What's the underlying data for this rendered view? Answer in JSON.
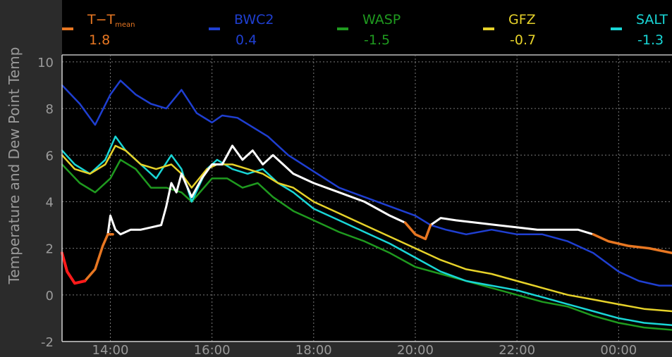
{
  "chart_data": {
    "type": "line",
    "title": "",
    "xlabel": "",
    "ylabel": "Temperature and Dew Point Temp",
    "ylim": [
      -2,
      10.3
    ],
    "xlim": [
      13.05,
      25.05
    ],
    "grid": true,
    "legend_position": "top",
    "x_ticks": [
      14,
      16,
      18,
      20,
      22,
      24
    ],
    "x_tick_labels": [
      "14:00",
      "16:00",
      "18:00",
      "20:00",
      "22:00",
      "00:00"
    ],
    "y_ticks": [
      -2,
      0,
      2,
      4,
      6,
      8,
      10
    ],
    "y_tick_labels": [
      "-2",
      "0",
      "2",
      "4",
      "6",
      "8",
      "10"
    ],
    "legend": [
      {
        "name": "T−T",
        "sub": "mean",
        "value": "1.8",
        "color": "#e87722"
      },
      {
        "name": "BWC2",
        "sub": "",
        "value": "0.4",
        "color": "#1f3fd1"
      },
      {
        "name": "WASP",
        "sub": "",
        "value": "-1.5",
        "color": "#1f9a1f"
      },
      {
        "name": "GFZ",
        "sub": "",
        "value": "-0.7",
        "color": "#e6d22a"
      },
      {
        "name": "SALT",
        "sub": "",
        "value": "-1.3",
        "color": "#19d6d6"
      }
    ],
    "series": [
      {
        "name": "BWC2",
        "color": "#1f3fd1",
        "x": [
          13.05,
          13.4,
          13.7,
          14.0,
          14.2,
          14.5,
          14.8,
          15.1,
          15.4,
          15.7,
          16.0,
          16.2,
          16.5,
          16.8,
          17.1,
          17.5,
          18.0,
          18.5,
          19.0,
          19.5,
          20.0,
          20.3,
          20.6,
          21.0,
          21.5,
          22.0,
          22.5,
          23.0,
          23.5,
          24.0,
          24.4,
          24.8,
          25.05
        ],
        "y": [
          9.0,
          8.2,
          7.3,
          8.6,
          9.2,
          8.6,
          8.2,
          8.0,
          8.8,
          7.8,
          7.4,
          7.7,
          7.6,
          7.2,
          6.8,
          6.0,
          5.3,
          4.6,
          4.2,
          3.8,
          3.4,
          3.0,
          2.8,
          2.6,
          2.8,
          2.6,
          2.6,
          2.3,
          1.8,
          1.0,
          0.6,
          0.4,
          0.4
        ]
      },
      {
        "name": "WASP",
        "color": "#1f9a1f",
        "x": [
          13.05,
          13.4,
          13.7,
          14.0,
          14.2,
          14.5,
          14.8,
          15.1,
          15.4,
          15.6,
          16.0,
          16.3,
          16.6,
          16.9,
          17.2,
          17.6,
          18.0,
          18.5,
          19.0,
          19.5,
          20.0,
          20.5,
          21.0,
          21.5,
          22.0,
          22.5,
          23.0,
          23.5,
          24.0,
          24.5,
          25.05
        ],
        "y": [
          5.6,
          4.8,
          4.4,
          5.0,
          5.8,
          5.4,
          4.6,
          4.6,
          4.4,
          4.0,
          5.0,
          5.0,
          4.6,
          4.8,
          4.2,
          3.6,
          3.2,
          2.7,
          2.3,
          1.8,
          1.2,
          0.9,
          0.6,
          0.3,
          0.0,
          -0.3,
          -0.5,
          -0.9,
          -1.2,
          -1.4,
          -1.5
        ]
      },
      {
        "name": "SALT",
        "color": "#19d6d6",
        "x": [
          13.05,
          13.3,
          13.6,
          13.9,
          14.1,
          14.3,
          14.6,
          14.9,
          15.2,
          15.4,
          15.6,
          15.9,
          16.1,
          16.4,
          16.7,
          17.0,
          17.3,
          17.6,
          18.0,
          18.5,
          19.0,
          19.5,
          20.0,
          20.5,
          21.0,
          21.5,
          22.0,
          22.5,
          23.0,
          23.5,
          24.0,
          24.5,
          25.05
        ],
        "y": [
          6.2,
          5.6,
          5.2,
          5.8,
          6.8,
          6.2,
          5.6,
          5.0,
          6.0,
          5.4,
          4.0,
          5.4,
          5.8,
          5.4,
          5.2,
          5.4,
          4.8,
          4.4,
          3.7,
          3.2,
          2.7,
          2.2,
          1.6,
          1.0,
          0.6,
          0.4,
          0.2,
          -0.1,
          -0.4,
          -0.7,
          -1.0,
          -1.2,
          -1.3
        ]
      },
      {
        "name": "GFZ",
        "color": "#e6d22a",
        "x": [
          13.05,
          13.3,
          13.6,
          13.9,
          14.1,
          14.3,
          14.6,
          14.9,
          15.2,
          15.4,
          15.6,
          15.9,
          16.1,
          16.4,
          16.7,
          17.0,
          17.3,
          17.6,
          18.0,
          18.5,
          19.0,
          19.5,
          20.0,
          20.5,
          21.0,
          21.5,
          22.0,
          22.5,
          23.0,
          23.5,
          24.0,
          24.5,
          25.05
        ],
        "y": [
          6.0,
          5.4,
          5.2,
          5.6,
          6.4,
          6.2,
          5.6,
          5.4,
          5.6,
          5.2,
          4.6,
          5.4,
          5.6,
          5.6,
          5.4,
          5.2,
          4.8,
          4.6,
          4.0,
          3.5,
          3.0,
          2.5,
          2.0,
          1.5,
          1.1,
          0.9,
          0.6,
          0.3,
          0.0,
          -0.2,
          -0.4,
          -0.6,
          -0.7
        ]
      },
      {
        "name": "T−T mean (white)",
        "color": "#ffffff",
        "x": [
          13.95,
          14.0,
          14.1,
          14.2,
          14.4,
          14.6,
          14.8,
          15.0,
          15.1,
          15.2,
          15.3,
          15.4,
          15.6,
          15.8,
          16.0,
          16.2,
          16.4,
          16.6,
          16.8,
          17.0,
          17.2,
          17.4,
          17.6,
          17.8,
          18.0,
          18.5,
          19.0,
          19.5,
          19.8
        ],
        "y": [
          2.6,
          3.4,
          2.8,
          2.6,
          2.8,
          2.8,
          2.9,
          3.0,
          3.8,
          4.8,
          4.4,
          5.2,
          4.2,
          5.0,
          5.6,
          5.6,
          6.4,
          5.8,
          6.2,
          5.6,
          6.0,
          5.6,
          5.2,
          5.0,
          4.8,
          4.4,
          4.0,
          3.4,
          3.1
        ]
      },
      {
        "name": "T−T mean (white 2)",
        "color": "#ffffff",
        "x": [
          20.3,
          20.5,
          20.8,
          21.2,
          21.6,
          22.0,
          22.4,
          22.8,
          23.2,
          23.5
        ],
        "y": [
          3.0,
          3.3,
          3.2,
          3.1,
          3.0,
          2.9,
          2.8,
          2.8,
          2.8,
          2.6
        ]
      },
      {
        "name": "T−T mean (orange)",
        "color": "#e87722",
        "x": [
          13.5,
          13.7,
          13.85,
          13.95,
          14.05
        ],
        "y": [
          0.6,
          1.1,
          2.1,
          2.6,
          2.6
        ]
      },
      {
        "name": "T−T mean (orange 2)",
        "color": "#e87722",
        "x": [
          19.8,
          20.0,
          20.2,
          20.3
        ],
        "y": [
          3.1,
          2.6,
          2.4,
          3.0
        ]
      },
      {
        "name": "T−T mean (orange 3)",
        "color": "#e87722",
        "x": [
          23.5,
          23.8,
          24.2,
          24.6,
          25.05
        ],
        "y": [
          2.6,
          2.3,
          2.1,
          2.0,
          1.8
        ]
      },
      {
        "name": "T−T mean (red)",
        "color": "#ff1a1a",
        "x": [
          13.05,
          13.15,
          13.3,
          13.5
        ],
        "y": [
          1.8,
          1.0,
          0.5,
          0.6
        ]
      }
    ]
  }
}
